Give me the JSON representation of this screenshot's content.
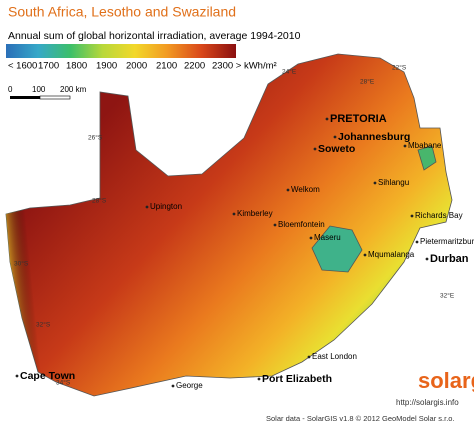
{
  "header": {
    "title": "South Africa, Lesotho and Swaziland",
    "subtitle": "Annual sum of global horizontal irradiation, average 1994-2010"
  },
  "legend": {
    "labels": [
      "< 1600",
      "1700",
      "1800",
      "1900",
      "2000",
      "2100",
      "2200",
      "2300 > kWh/m²"
    ]
  },
  "scale": {
    "labels": [
      "0",
      "100",
      "200 km"
    ]
  },
  "cities": [
    {
      "label": "PRETORIA"
    },
    {
      "label": "Johannesburg"
    },
    {
      "label": "Soweto"
    },
    {
      "label": "Mbabane"
    },
    {
      "label": "Sihlangu"
    },
    {
      "label": "Welkom"
    },
    {
      "label": "Upington"
    },
    {
      "label": "Kimberley"
    },
    {
      "label": "Bloemfontein"
    },
    {
      "label": "Maseru"
    },
    {
      "label": "Richards Bay"
    },
    {
      "label": "Pietermaritzburg"
    },
    {
      "label": "Durban"
    },
    {
      "label": "Mqumalanga"
    },
    {
      "label": "East London"
    },
    {
      "label": "Port Elizabeth"
    },
    {
      "label": "George"
    },
    {
      "label": "Cape Town"
    }
  ],
  "graticule": [
    "24°E",
    "22°S",
    "28°E",
    "26°S",
    "28°S",
    "30°S",
    "32°S",
    "34°S",
    "32°E"
  ],
  "logo": "solargis",
  "footer": {
    "url": "http://solargis.info",
    "credit": "Solar data - SolarGIS v1.8 © 2012 GeoModel Solar s.r.o."
  }
}
